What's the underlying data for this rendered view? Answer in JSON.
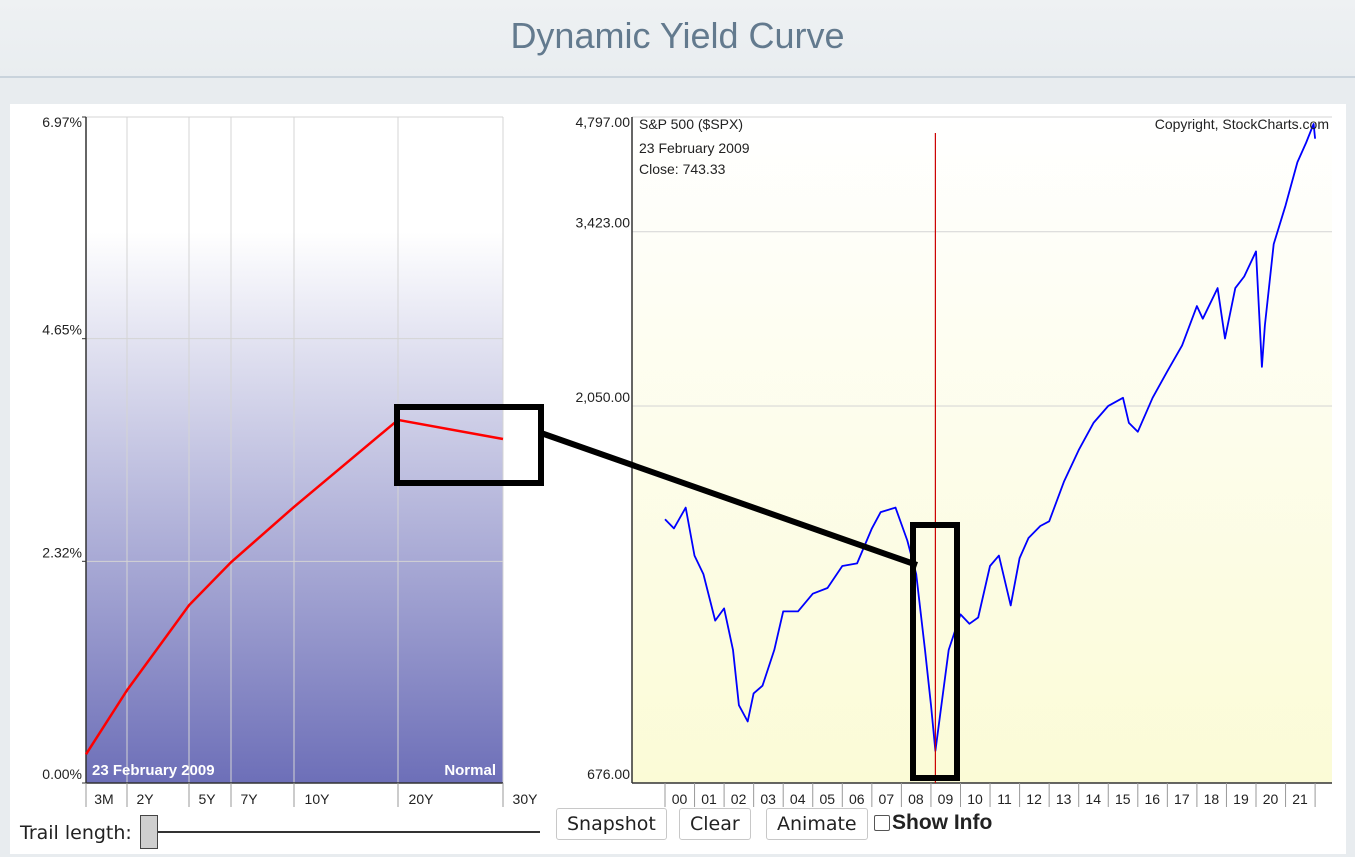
{
  "header": {
    "title": "Dynamic Yield Curve"
  },
  "yield_chart": {
    "y_ticks": [
      "6.97%",
      "4.65%",
      "2.32%",
      "0.00%"
    ],
    "x_ticks": [
      "3M",
      "2Y",
      "5Y",
      "7Y",
      "10Y",
      "20Y",
      "30Y"
    ],
    "date_label": "23  February 2009",
    "curve_label": "Normal",
    "line_color": "#ff0000"
  },
  "spx_chart": {
    "title": "S&P 500 ($SPX)",
    "copyright": "Copyright, StockCharts.com",
    "info_date": "23  February 2009",
    "info_close": "Close: 743.33",
    "y_ticks": [
      "4,797.00",
      "3,423.00",
      "2,050.00",
      "676.00"
    ],
    "x_ticks": [
      "00",
      "01",
      "02",
      "03",
      "04",
      "05",
      "06",
      "07",
      "08",
      "09",
      "10",
      "11",
      "12",
      "13",
      "14",
      "15",
      "16",
      "17",
      "18",
      "19",
      "20",
      "21"
    ],
    "line_color": "#0000ff",
    "cursor_color": "#cc0000"
  },
  "controls": {
    "snapshot": "Snapshot",
    "clear": "Clear",
    "animate": "Animate",
    "show_info": "Show Info",
    "trail_label": "Trail length:"
  },
  "chart_data": [
    {
      "type": "line",
      "x": [
        "3M",
        "2Y",
        "5Y",
        "7Y",
        "10Y",
        "20Y",
        "30Y"
      ],
      "series": [
        {
          "values": [
            0.3,
            0.97,
            1.86,
            2.31,
            2.89,
            3.8,
            3.6
          ]
        }
      ],
      "ylim": [
        0,
        6.97
      ],
      "grid": true
    },
    {
      "type": "line",
      "title": "S&P 500 ($SPX)",
      "x": [
        "2000.0",
        "2000.3",
        "2000.7",
        "2001.0",
        "2001.3",
        "2001.7",
        "2002.0",
        "2002.3",
        "2002.5",
        "2002.8",
        "2003.0",
        "2003.3",
        "2003.7",
        "2004.0",
        "2004.5",
        "2005.0",
        "2005.5",
        "2006.0",
        "2006.5",
        "2007.0",
        "2007.3",
        "2007.8",
        "2008.2",
        "2008.5",
        "2008.8",
        "2009.0",
        "2009.15",
        "2009.3",
        "2009.6",
        "2010.0",
        "2010.3",
        "2010.6",
        "2011.0",
        "2011.3",
        "2011.7",
        "2012.0",
        "2012.3",
        "2012.7",
        "2013.0",
        "2013.5",
        "2014.0",
        "2014.5",
        "2015.0",
        "2015.5",
        "2015.7",
        "2016.0",
        "2016.5",
        "2017.0",
        "2017.5",
        "2018.0",
        "2018.2",
        "2018.7",
        "2018.95",
        "2019.3",
        "2019.6",
        "2020.0",
        "2020.2",
        "2020.3",
        "2020.6",
        "2021.0",
        "2021.4",
        "2021.7",
        "2021.95",
        "2022.0"
      ],
      "series": [
        {
          "values": [
            1469,
            1430,
            1520,
            1320,
            1250,
            1090,
            1130,
            1000,
            850,
            810,
            880,
            900,
            1000,
            1120,
            1120,
            1180,
            1200,
            1280,
            1290,
            1430,
            1500,
            1520,
            1380,
            1250,
            1000,
            850,
            743,
            820,
            1000,
            1110,
            1080,
            1100,
            1280,
            1320,
            1140,
            1310,
            1390,
            1440,
            1460,
            1640,
            1800,
            1950,
            2050,
            2100,
            1950,
            1900,
            2100,
            2270,
            2450,
            2750,
            2650,
            2900,
            2500,
            2900,
            3000,
            3230,
            2300,
            2600,
            3300,
            3700,
            4200,
            4450,
            4700,
            4500
          ]
        }
      ],
      "ylim": [
        676,
        4797
      ],
      "grid": true
    }
  ]
}
